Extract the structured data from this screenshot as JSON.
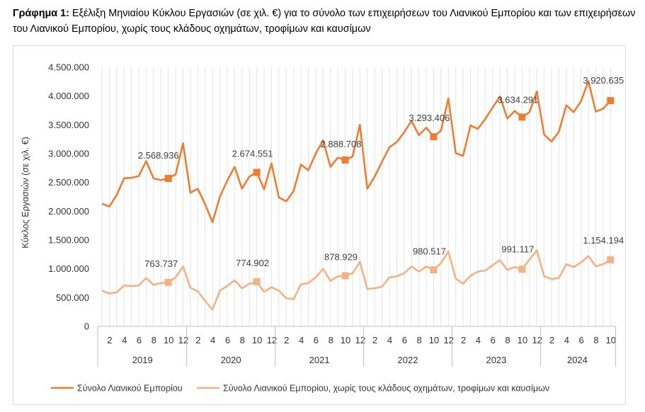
{
  "title": {
    "bold": "Γράφημα 1:",
    "text": " Εξέλιξη Μηνιαίου Κύκλου Εργασιών (σε χιλ. €) για το σύνολο των επιχειρήσεων του Λιανικού Εμπορίου και των επιχειρήσεων του Λιανικού Εμπορίου, χωρίς τους κλάδους οχημάτων, τροφίμων και καυσίμων"
  },
  "chart_data": {
    "type": "line",
    "ylabel": "Κύκλος Εργασιών (σε χιλ. €)",
    "ylim": [
      0,
      4500000
    ],
    "yticks": [
      0,
      500000,
      1000000,
      1500000,
      2000000,
      2500000,
      3000000,
      3500000,
      4000000,
      4500000
    ],
    "ytick_labels": [
      "0",
      "500.000",
      "1.000.000",
      "1.500.000",
      "2.000.000",
      "2.500.000",
      "3.000.000",
      "3.500.000",
      "4.000.000",
      "4.500.000"
    ],
    "month_labels": [
      "2",
      "4",
      "6",
      "8",
      "10",
      "12"
    ],
    "years": [
      "2019",
      "2020",
      "2021",
      "2022",
      "2023",
      "2024"
    ],
    "legend_position": "bottom",
    "grid": "vertical",
    "series": [
      {
        "name": "Σύνολο Λιανικού Εμπορίου",
        "color": "#ed7d31",
        "values": [
          2130000,
          2080000,
          2280000,
          2570000,
          2580000,
          2610000,
          2870000,
          2570000,
          2540000,
          2568936,
          2640000,
          3180000,
          2320000,
          2390000,
          2120000,
          1810000,
          2250000,
          2530000,
          2770000,
          2390000,
          2600000,
          2674551,
          2380000,
          2830000,
          2240000,
          2170000,
          2350000,
          2810000,
          2710000,
          3000000,
          3230000,
          2770000,
          2930000,
          2888708,
          2950000,
          3500000,
          2390000,
          2600000,
          2860000,
          3110000,
          3200000,
          3370000,
          3570000,
          3320000,
          3450000,
          3293406,
          3400000,
          3960000,
          3010000,
          2960000,
          3490000,
          3430000,
          3600000,
          3800000,
          3990000,
          3610000,
          3740000,
          3634291,
          3720000,
          4080000,
          3330000,
          3210000,
          3380000,
          3840000,
          3720000,
          3910000,
          4260000,
          3730000,
          3780000,
          3920635
        ],
        "labels": [
          {
            "index": 9,
            "text": "2.568.936"
          },
          {
            "index": 21,
            "text": "2.674.551"
          },
          {
            "index": 33,
            "text": "2.888.708"
          },
          {
            "index": 45,
            "text": "3.293.406"
          },
          {
            "index": 57,
            "text": "3.634.291"
          },
          {
            "index": 69,
            "text": "3.920.635"
          }
        ]
      },
      {
        "name": "Σύνολο Λιανικού Εμπορίου, χωρίς τους κλάδους οχημάτων, τροφίμων και καυσίμων",
        "color": "#f4b183",
        "values": [
          620000,
          570000,
          590000,
          710000,
          700000,
          710000,
          840000,
          720000,
          750000,
          763737,
          850000,
          1040000,
          670000,
          610000,
          440000,
          290000,
          620000,
          700000,
          800000,
          660000,
          740000,
          774902,
          600000,
          680000,
          620000,
          490000,
          470000,
          730000,
          750000,
          850000,
          1000000,
          790000,
          870000,
          878929,
          920000,
          1120000,
          650000,
          660000,
          690000,
          850000,
          870000,
          920000,
          1040000,
          950000,
          1040000,
          980517,
          1100000,
          1300000,
          830000,
          740000,
          880000,
          950000,
          970000,
          1060000,
          1150000,
          980000,
          1030000,
          991117,
          1160000,
          1320000,
          870000,
          820000,
          840000,
          1080000,
          1030000,
          1110000,
          1220000,
          1040000,
          1080000,
          1154194
        ],
        "labels": [
          {
            "index": 9,
            "text": "763.737"
          },
          {
            "index": 21,
            "text": "774.902"
          },
          {
            "index": 33,
            "text": "878.929"
          },
          {
            "index": 45,
            "text": "980.517"
          },
          {
            "index": 57,
            "text": "991.117"
          },
          {
            "index": 69,
            "text": "1.154.194"
          }
        ]
      }
    ]
  }
}
